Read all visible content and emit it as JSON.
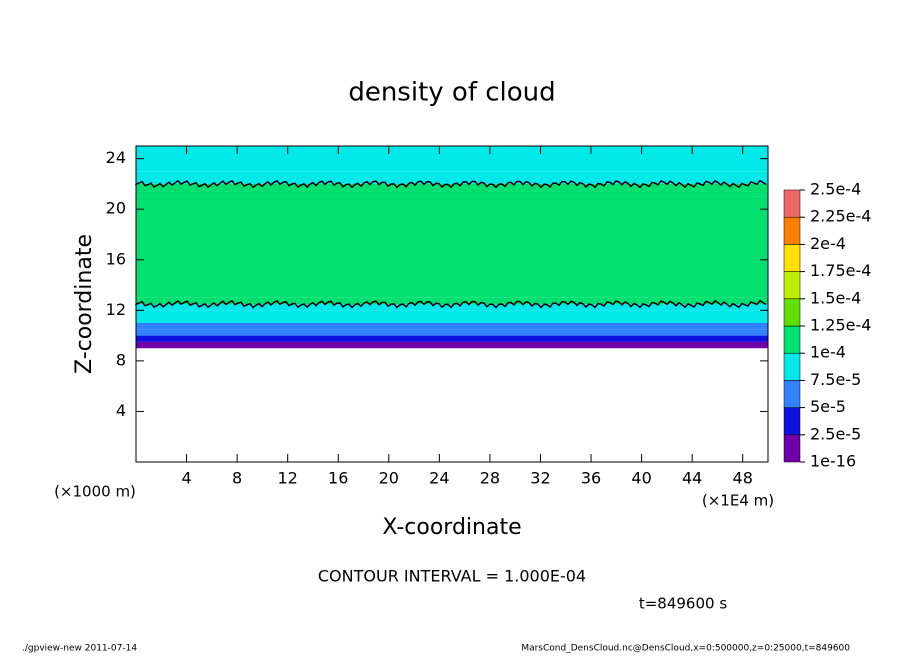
{
  "chart_data": {
    "type": "contour",
    "title": "density of cloud",
    "xlabel": "X-coordinate",
    "ylabel": "Z-coordinate",
    "x_unit": "(×1E4 m)",
    "y_unit": "(×1000 m)",
    "contour_note": "CONTOUR INTERVAL = 1.000E-04",
    "time_label": "t=849600 s",
    "footer_left": "./gpview-new  2011-07-14",
    "footer_right": "MarsCond_DensCloud.nc@DensCloud,x=0:500000,z=0:25000,t=849600",
    "xlim": [
      0,
      50
    ],
    "xticks": [
      4,
      8,
      12,
      16,
      20,
      24,
      28,
      32,
      36,
      40,
      44,
      48
    ],
    "ylim": [
      0,
      25
    ],
    "yticks": [
      4,
      8,
      12,
      16,
      20,
      24
    ],
    "z_edges": [
      9,
      9.5,
      10,
      10.5,
      11,
      12,
      12.5,
      13,
      21,
      22,
      23,
      25
    ],
    "density": [
      1e-05,
      3e-05,
      6e-05,
      7e-05,
      8e-05,
      9e-05,
      0.000105,
      0.00011,
      0.000105,
      9e-05,
      8e-05
    ],
    "contour_level": 0.0001,
    "levels": [
      {
        "value": 1e-16,
        "label": "1e-16"
      },
      {
        "value": 2.5e-05,
        "label": "2.5e-5"
      },
      {
        "value": 5e-05,
        "label": "5e-5"
      },
      {
        "value": 7.5e-05,
        "label": "7.5e-5"
      },
      {
        "value": 0.0001,
        "label": "1e-4"
      },
      {
        "value": 0.000125,
        "label": "1.25e-4"
      },
      {
        "value": 0.00015,
        "label": "1.5e-4"
      },
      {
        "value": 0.000175,
        "label": "1.75e-4"
      },
      {
        "value": 0.0002,
        "label": "2e-4"
      },
      {
        "value": 0.000225,
        "label": "2.25e-4"
      },
      {
        "value": 0.00025,
        "label": "2.5e-4"
      }
    ],
    "colors": [
      "#7000a8",
      "#1010e0",
      "#3080ff",
      "#00e8e8",
      "#00e070",
      "#60e000",
      "#c0f000",
      "#ffe000",
      "#ff8000",
      "#f06868"
    ]
  }
}
